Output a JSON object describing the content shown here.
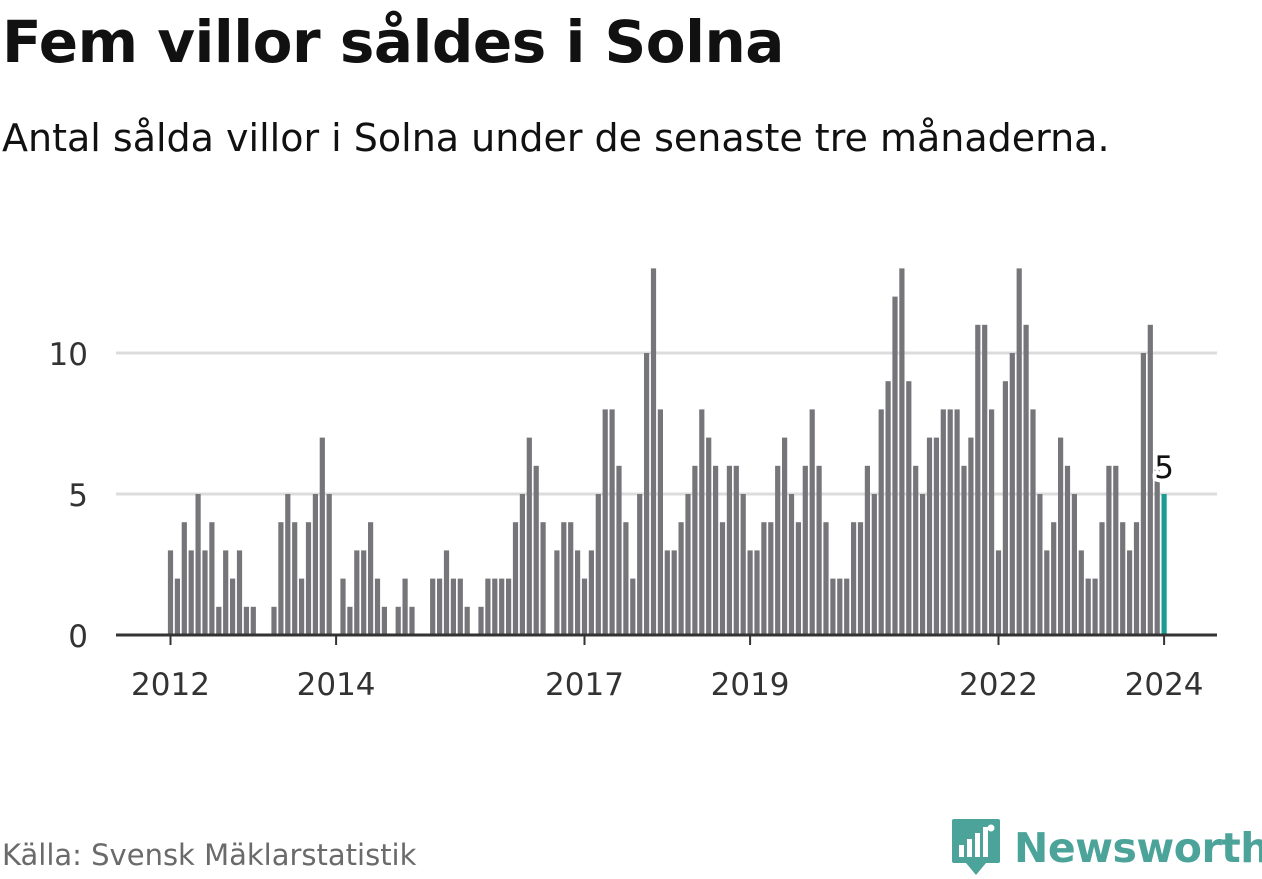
{
  "header": {
    "title": "Fem villor såldes i Solna",
    "subtitle": "Antal sålda villor i Solna under de senaste tre månaderna."
  },
  "footer": {
    "source": "Källa: Svensk Mäklarstatistik",
    "brand": "Newsworthy"
  },
  "colors": {
    "bar": "#76767a",
    "highlight": "#1a9c93",
    "grid": "#dcdcdc",
    "axis": "#333333",
    "brand": "#4ba399",
    "text": "#333333"
  },
  "chart_data": {
    "type": "bar",
    "title": "Fem villor såldes i Solna",
    "xlabel": "",
    "ylabel": "",
    "x_start": "2012-01",
    "ylim": [
      0,
      13
    ],
    "y_ticks": [
      0,
      5,
      10
    ],
    "x_ticks": [
      {
        "label": "2012",
        "index": 0
      },
      {
        "label": "2014",
        "index": 24
      },
      {
        "label": "2017",
        "index": 60
      },
      {
        "label": "2019",
        "index": 84
      },
      {
        "label": "2022",
        "index": 120
      },
      {
        "label": "2024",
        "index": 144
      }
    ],
    "values": [
      3,
      2,
      4,
      3,
      5,
      3,
      4,
      1,
      3,
      2,
      3,
      1,
      1,
      0,
      0,
      1,
      4,
      5,
      4,
      2,
      4,
      5,
      7,
      5,
      0,
      2,
      1,
      3,
      3,
      4,
      2,
      1,
      0,
      1,
      2,
      1,
      0,
      0,
      2,
      2,
      3,
      2,
      2,
      1,
      0,
      1,
      2,
      2,
      2,
      2,
      4,
      5,
      7,
      6,
      4,
      0,
      3,
      4,
      4,
      3,
      2,
      3,
      5,
      8,
      8,
      6,
      4,
      2,
      5,
      10,
      13,
      8,
      3,
      3,
      4,
      5,
      6,
      8,
      7,
      6,
      4,
      6,
      6,
      5,
      3,
      3,
      4,
      4,
      6,
      7,
      5,
      4,
      6,
      8,
      6,
      4,
      2,
      2,
      2,
      4,
      4,
      6,
      5,
      8,
      9,
      12,
      13,
      9,
      6,
      5,
      7,
      7,
      8,
      8,
      8,
      6,
      7,
      11,
      11,
      8,
      3,
      9,
      10,
      13,
      11,
      8,
      5,
      3,
      4,
      7,
      6,
      5,
      3,
      2,
      2,
      4,
      6,
      6,
      4,
      3,
      4,
      10,
      11,
      6,
      5
    ],
    "highlight_index": 144,
    "highlight_label": "5"
  }
}
